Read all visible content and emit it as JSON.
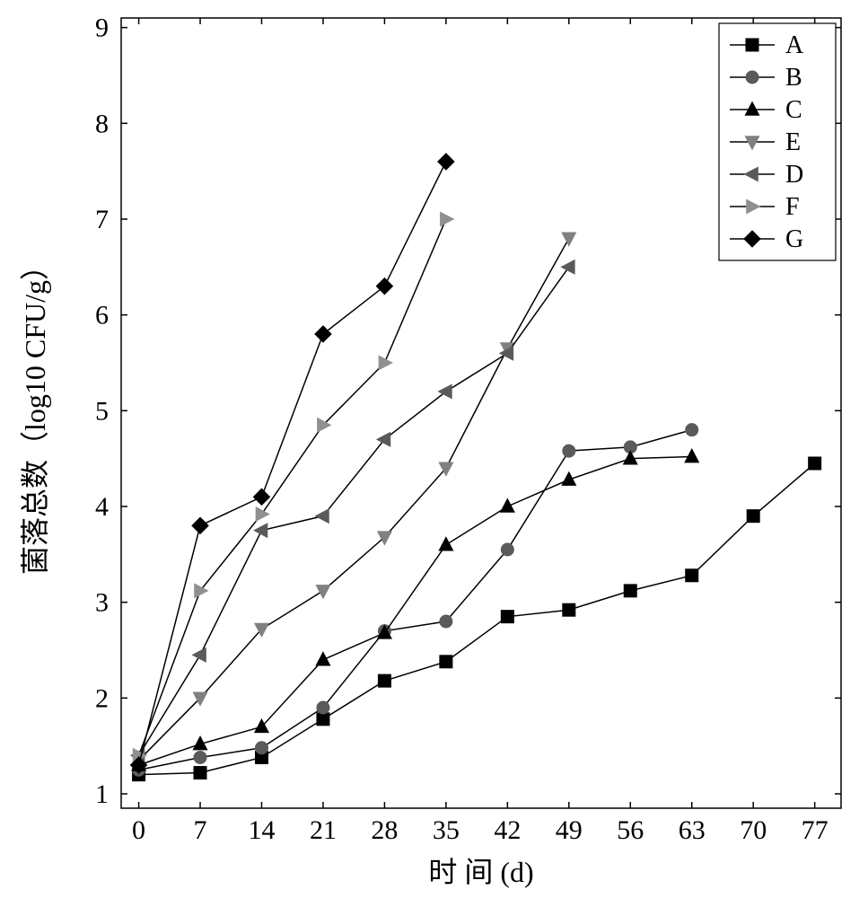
{
  "chart": {
    "type": "line",
    "background_color": "#ffffff",
    "plot_border_color": "#000000",
    "line_color": "#000000",
    "line_width": 1.5,
    "font_family": "Times New Roman",
    "axis": {
      "x": {
        "label": "时 间 (d)",
        "label_fontsize": 32,
        "min": -2,
        "max": 80,
        "ticks": [
          0,
          7,
          14,
          21,
          28,
          35,
          42,
          49,
          56,
          63,
          70,
          77
        ],
        "tick_fontsize": 30
      },
      "y": {
        "label": "菌落总数（log10 CFU/g）",
        "label_fontsize": 32,
        "min": 0.85,
        "max": 9.1,
        "ticks": [
          1,
          2,
          3,
          4,
          5,
          6,
          7,
          8,
          9
        ],
        "tick_fontsize": 30
      }
    },
    "legend": {
      "position": "top-right",
      "box_border": "#000000",
      "box_fill": "#ffffff",
      "fontsize": 28
    },
    "series": [
      {
        "name": "A",
        "marker": "square-filled",
        "color": "#000000",
        "fill": "#000000",
        "x": [
          0,
          7,
          14,
          21,
          28,
          35,
          42,
          49,
          56,
          63,
          70,
          77
        ],
        "y": [
          1.2,
          1.22,
          1.38,
          1.78,
          2.18,
          2.38,
          2.85,
          2.92,
          3.12,
          3.28,
          3.9,
          4.45
        ]
      },
      {
        "name": "B",
        "marker": "circle-filled",
        "color": "#5a5a5a",
        "fill": "#5a5a5a",
        "x": [
          0,
          7,
          14,
          21,
          28,
          35,
          42,
          49,
          56,
          63
        ],
        "y": [
          1.25,
          1.38,
          1.48,
          1.9,
          2.7,
          2.8,
          3.55,
          4.58,
          4.62,
          4.8
        ]
      },
      {
        "name": "C",
        "marker": "triangle-up-filled",
        "color": "#000000",
        "fill": "#000000",
        "x": [
          0,
          7,
          14,
          21,
          28,
          35,
          42,
          49,
          56,
          63
        ],
        "y": [
          1.3,
          1.52,
          1.7,
          2.4,
          2.68,
          3.6,
          4.0,
          4.28,
          4.5,
          4.52
        ]
      },
      {
        "name": "E",
        "marker": "triangle-down-filled",
        "color": "#808080",
        "fill": "#808080",
        "x": [
          0,
          7,
          14,
          21,
          28,
          35,
          42,
          49
        ],
        "y": [
          1.35,
          2.0,
          2.72,
          3.12,
          3.68,
          4.4,
          5.65,
          6.8
        ]
      },
      {
        "name": "D",
        "marker": "triangle-left-filled",
        "color": "#5a5a5a",
        "fill": "#5a5a5a",
        "x": [
          0,
          7,
          14,
          21,
          28,
          35,
          42,
          49
        ],
        "y": [
          1.4,
          2.45,
          3.75,
          3.9,
          4.7,
          5.2,
          5.6,
          6.5
        ]
      },
      {
        "name": "F",
        "marker": "triangle-right-filled",
        "color": "#909090",
        "fill": "#909090",
        "x": [
          0,
          7,
          14,
          21,
          28,
          35
        ],
        "y": [
          1.4,
          3.12,
          3.92,
          4.85,
          5.5,
          7.0
        ]
      },
      {
        "name": "G",
        "marker": "diamond-filled",
        "color": "#000000",
        "fill": "#000000",
        "x": [
          0,
          7,
          14,
          21,
          28,
          35
        ],
        "y": [
          1.3,
          3.8,
          4.1,
          5.8,
          6.3,
          7.6
        ]
      }
    ]
  }
}
